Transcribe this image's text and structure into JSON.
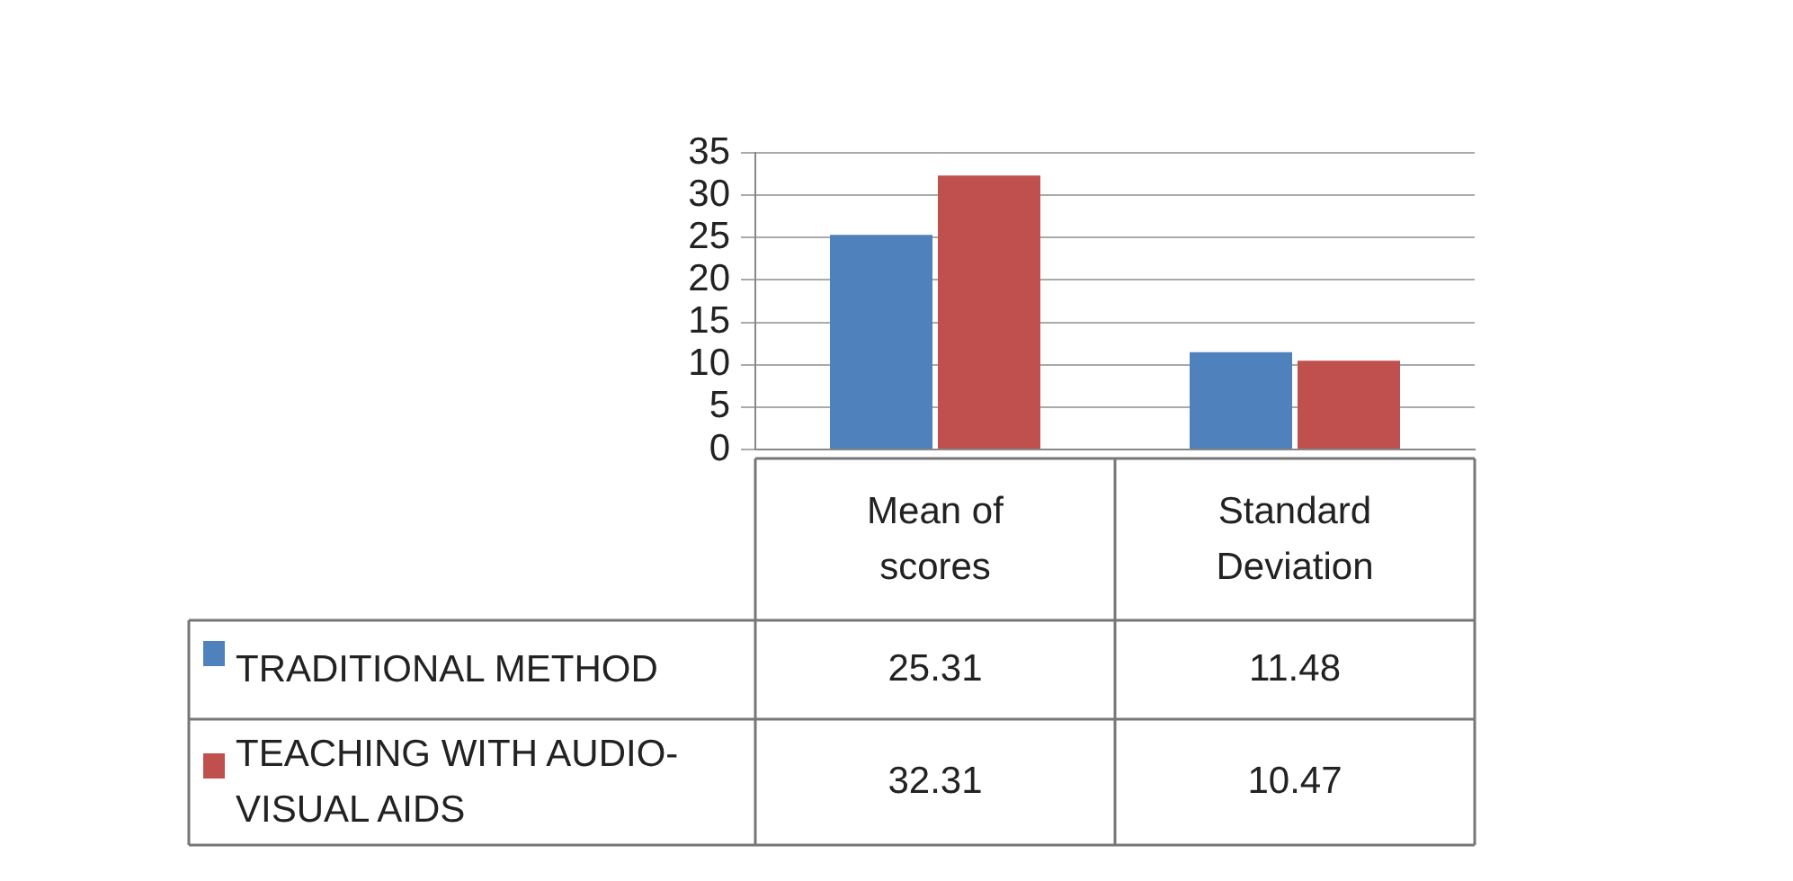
{
  "chart_data": {
    "type": "bar",
    "categories": [
      "Mean of scores",
      "Standard Deviation"
    ],
    "series": [
      {
        "name": "TRADITIONAL METHOD",
        "color": "#4f81bd",
        "values": [
          25.31,
          11.48
        ]
      },
      {
        "name": "TEACHING WITH AUDIO-VISUAL AIDS",
        "color": "#c0504d",
        "values": [
          32.31,
          10.47
        ]
      }
    ],
    "ylim": [
      0,
      35
    ],
    "yticks": [
      0,
      5,
      10,
      15,
      20,
      25,
      30,
      35
    ],
    "grid": "y",
    "legend": "bottom left",
    "data_labels": true
  }
}
